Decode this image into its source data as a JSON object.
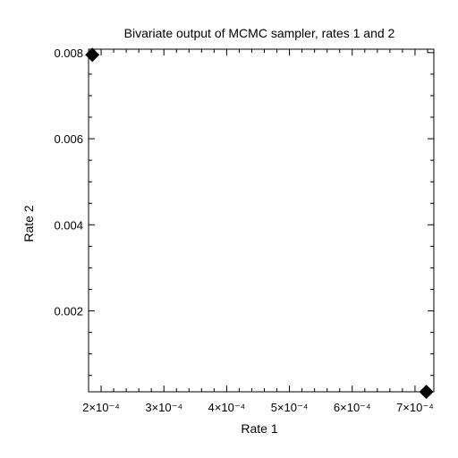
{
  "chart_data": {
    "type": "scatter",
    "title": "Bivariate output of MCMC sampler, rates 1 and 2",
    "xlabel": "Rate 1",
    "ylabel": "Rate 2",
    "xlim": [
      0.00018,
      0.00073
    ],
    "ylim": [
      0.00012,
      0.00808
    ],
    "xticks": [
      {
        "value": 0.0002,
        "label": "2×10⁻⁴"
      },
      {
        "value": 0.0003,
        "label": "3×10⁻⁴"
      },
      {
        "value": 0.0004,
        "label": "4×10⁻⁴"
      },
      {
        "value": 0.0005,
        "label": "5×10⁻⁴"
      },
      {
        "value": 0.0006,
        "label": "6×10⁻⁴"
      },
      {
        "value": 0.0007,
        "label": "7×10⁻⁴"
      }
    ],
    "yticks": [
      {
        "value": 0.002,
        "label": "0.002"
      },
      {
        "value": 0.004,
        "label": "0.004"
      },
      {
        "value": 0.006,
        "label": "0.006"
      },
      {
        "value": 0.008,
        "label": "0.008"
      }
    ],
    "points": [
      {
        "x": 0.000186,
        "y": 0.00795
      },
      {
        "x": 0.000718,
        "y": 0.00012
      }
    ],
    "grid": false,
    "marker_color": "#000000"
  }
}
